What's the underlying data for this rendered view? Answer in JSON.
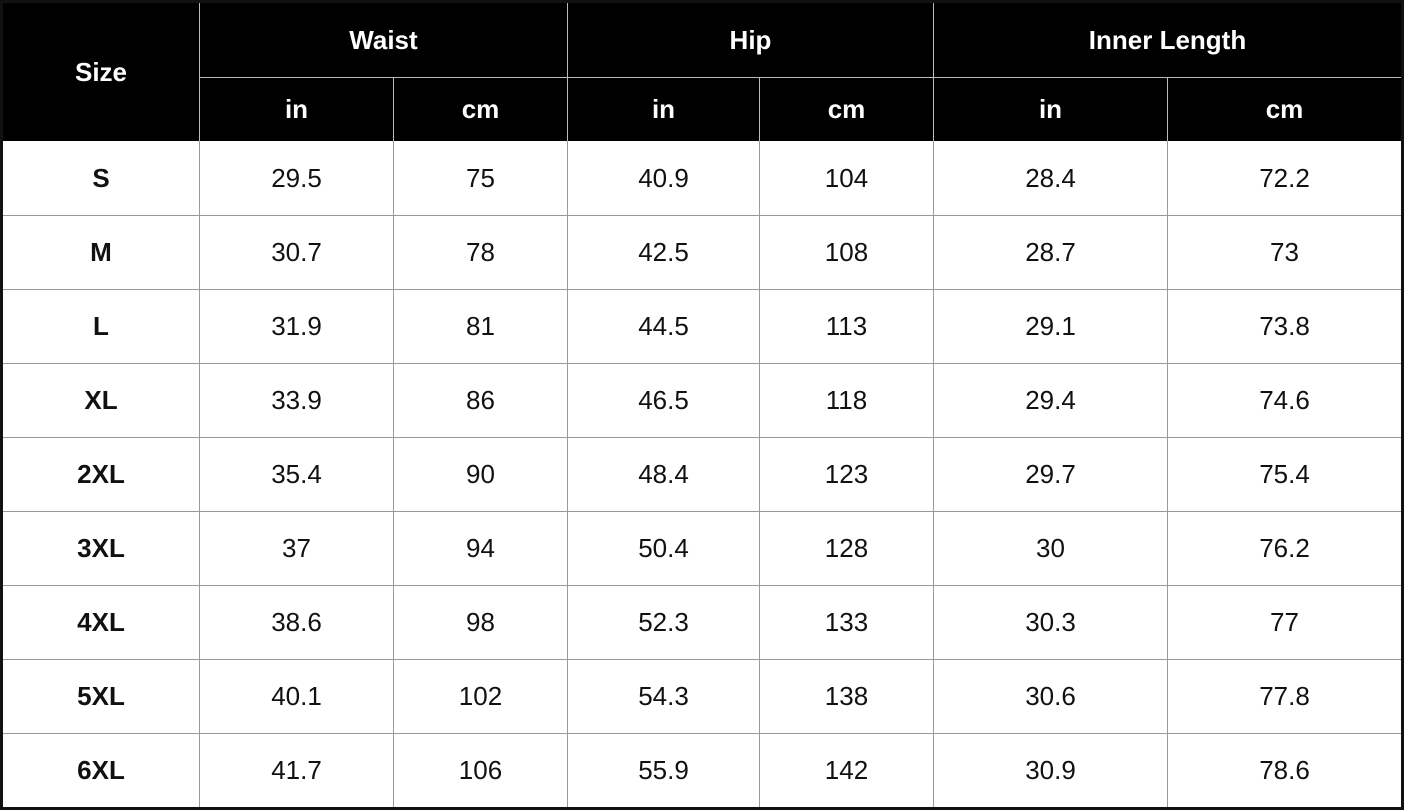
{
  "header": {
    "size": "Size",
    "groups": [
      {
        "label": "Waist",
        "units": [
          "in",
          "cm"
        ]
      },
      {
        "label": "Hip",
        "units": [
          "in",
          "cm"
        ]
      },
      {
        "label": "Inner Length",
        "units": [
          "in",
          "cm"
        ]
      }
    ]
  },
  "table": {
    "rows": [
      {
        "size": "S",
        "values": [
          29.5,
          75,
          40.9,
          104,
          28.4,
          72.2
        ]
      },
      {
        "size": "M",
        "values": [
          30.7,
          78,
          42.5,
          108,
          28.7,
          73
        ]
      },
      {
        "size": "L",
        "values": [
          31.9,
          81,
          44.5,
          113,
          29.1,
          73.8
        ]
      },
      {
        "size": "XL",
        "values": [
          33.9,
          86,
          46.5,
          118,
          29.4,
          74.6
        ]
      },
      {
        "size": "2XL",
        "values": [
          35.4,
          90,
          48.4,
          123,
          29.7,
          75.4
        ]
      },
      {
        "size": "3XL",
        "values": [
          37,
          94,
          50.4,
          128,
          30,
          76.2
        ]
      },
      {
        "size": "4XL",
        "values": [
          38.6,
          98,
          52.3,
          133,
          30.3,
          77
        ]
      },
      {
        "size": "5XL",
        "values": [
          40.1,
          102,
          54.3,
          138,
          30.6,
          77.8
        ]
      },
      {
        "size": "6XL",
        "values": [
          41.7,
          106,
          55.9,
          142,
          30.9,
          78.6
        ]
      }
    ]
  }
}
